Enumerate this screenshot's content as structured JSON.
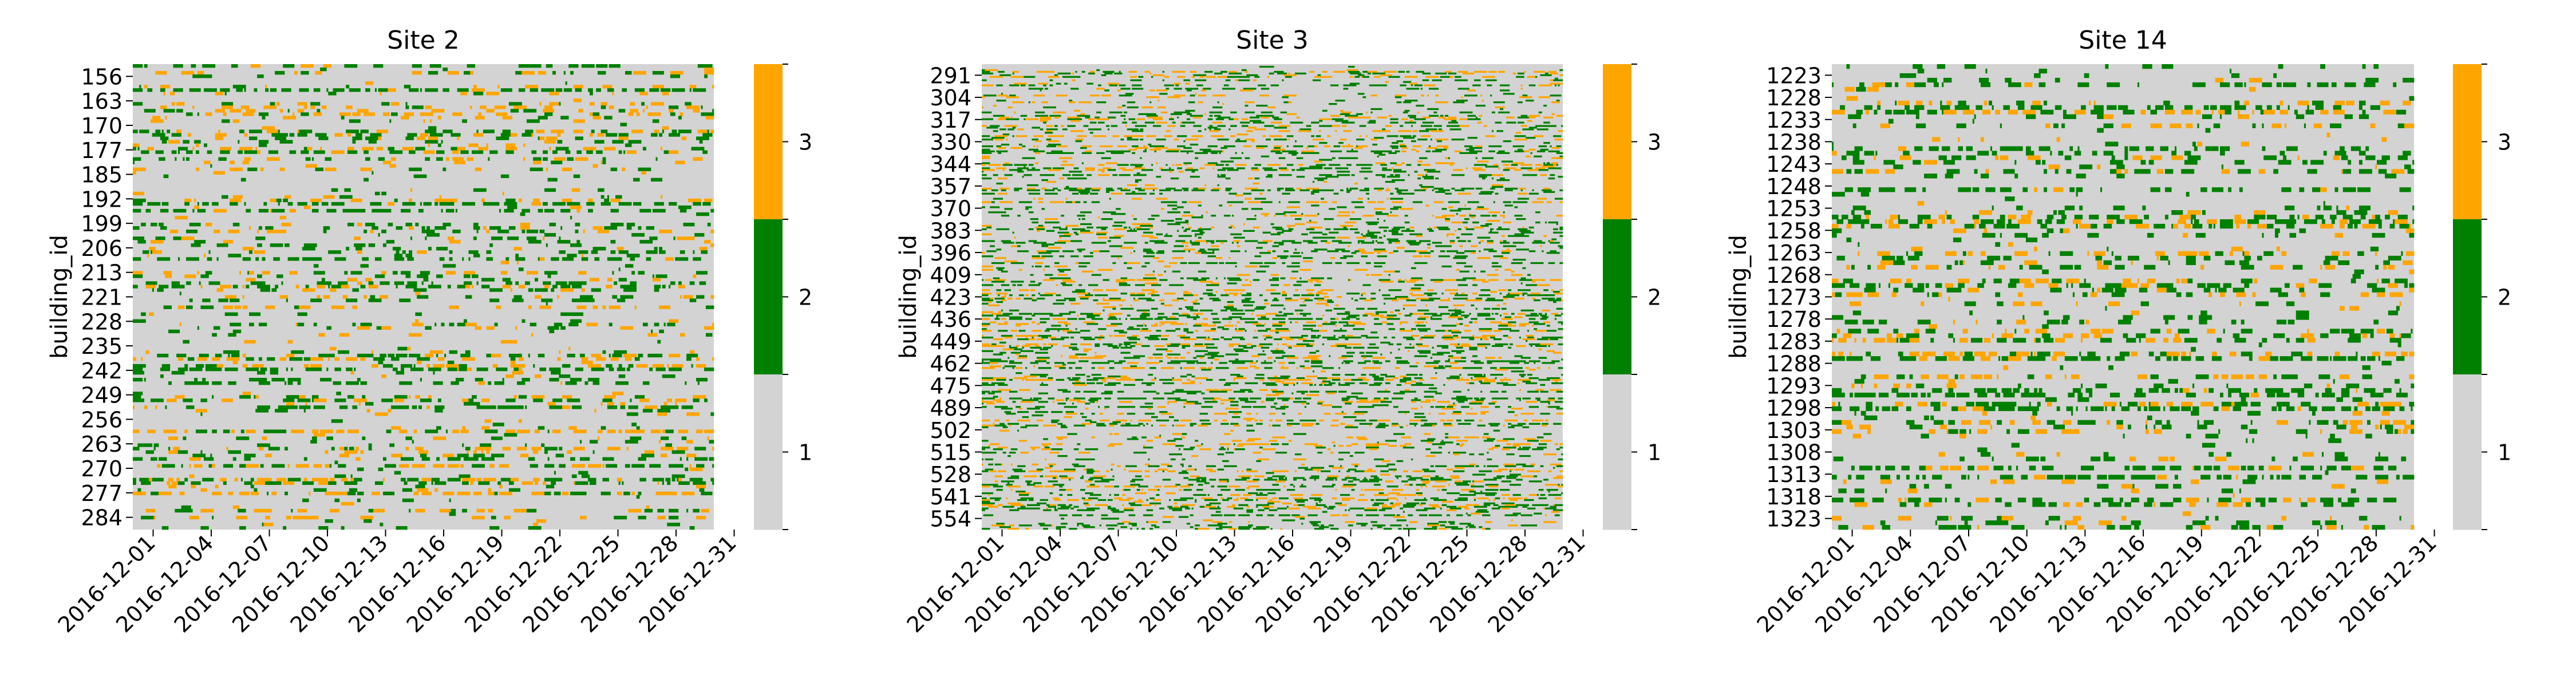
{
  "figure": {
    "colorbar": {
      "levels": [
        1,
        2,
        3
      ],
      "colors": [
        "#d3d3d3",
        "#008000",
        "#ffa500"
      ],
      "tick_labels": [
        "1",
        "2",
        "3"
      ]
    }
  },
  "chart_data": [
    {
      "type": "heatmap",
      "title": "Site 2",
      "ylabel": "building_id",
      "xlabel": "",
      "x_range": [
        "2016-12-01",
        "2016-12-31"
      ],
      "x_tick_labels": [
        "2016-12-01",
        "2016-12-04",
        "2016-12-07",
        "2016-12-10",
        "2016-12-13",
        "2016-12-16",
        "2016-12-19",
        "2016-12-22",
        "2016-12-25",
        "2016-12-28",
        "2016-12-31"
      ],
      "y_range": [
        156,
        290
      ],
      "y_tick_labels": [
        "156",
        "163",
        "170",
        "177",
        "185",
        "192",
        "199",
        "206",
        "213",
        "221",
        "228",
        "235",
        "242",
        "249",
        "256",
        "263",
        "270",
        "277",
        "284"
      ],
      "values_legend": [
        1,
        2,
        3
      ],
      "cmap": "discrete"
    },
    {
      "type": "heatmap",
      "title": "Site 3",
      "ylabel": "building_id",
      "xlabel": "",
      "x_range": [
        "2016-12-01",
        "2016-12-31"
      ],
      "x_tick_labels": [
        "2016-12-01",
        "2016-12-04",
        "2016-12-07",
        "2016-12-10",
        "2016-12-13",
        "2016-12-16",
        "2016-12-19",
        "2016-12-22",
        "2016-12-25",
        "2016-12-28",
        "2016-12-31"
      ],
      "y_range": [
        291,
        565
      ],
      "y_tick_labels": [
        "291",
        "304",
        "317",
        "330",
        "344",
        "357",
        "370",
        "383",
        "396",
        "409",
        "423",
        "436",
        "449",
        "462",
        "475",
        "489",
        "502",
        "515",
        "528",
        "541",
        "554"
      ],
      "values_legend": [
        1,
        2,
        3
      ],
      "cmap": "discrete"
    },
    {
      "type": "heatmap",
      "title": "Site 14",
      "ylabel": "building_id",
      "xlabel": "",
      "x_range": [
        "2016-12-01",
        "2016-12-31"
      ],
      "x_tick_labels": [
        "2016-12-01",
        "2016-12-04",
        "2016-12-07",
        "2016-12-10",
        "2016-12-13",
        "2016-12-16",
        "2016-12-19",
        "2016-12-22",
        "2016-12-25",
        "2016-12-28",
        "2016-12-31"
      ],
      "y_range": [
        1223,
        1324
      ],
      "y_tick_labels": [
        "1223",
        "1228",
        "1233",
        "1238",
        "1243",
        "1248",
        "1253",
        "1258",
        "1263",
        "1268",
        "1273",
        "1278",
        "1283",
        "1288",
        "1293",
        "1298",
        "1303",
        "1308",
        "1313",
        "1318",
        "1323"
      ],
      "values_legend": [
        1,
        2,
        3
      ],
      "cmap": "discrete"
    }
  ]
}
